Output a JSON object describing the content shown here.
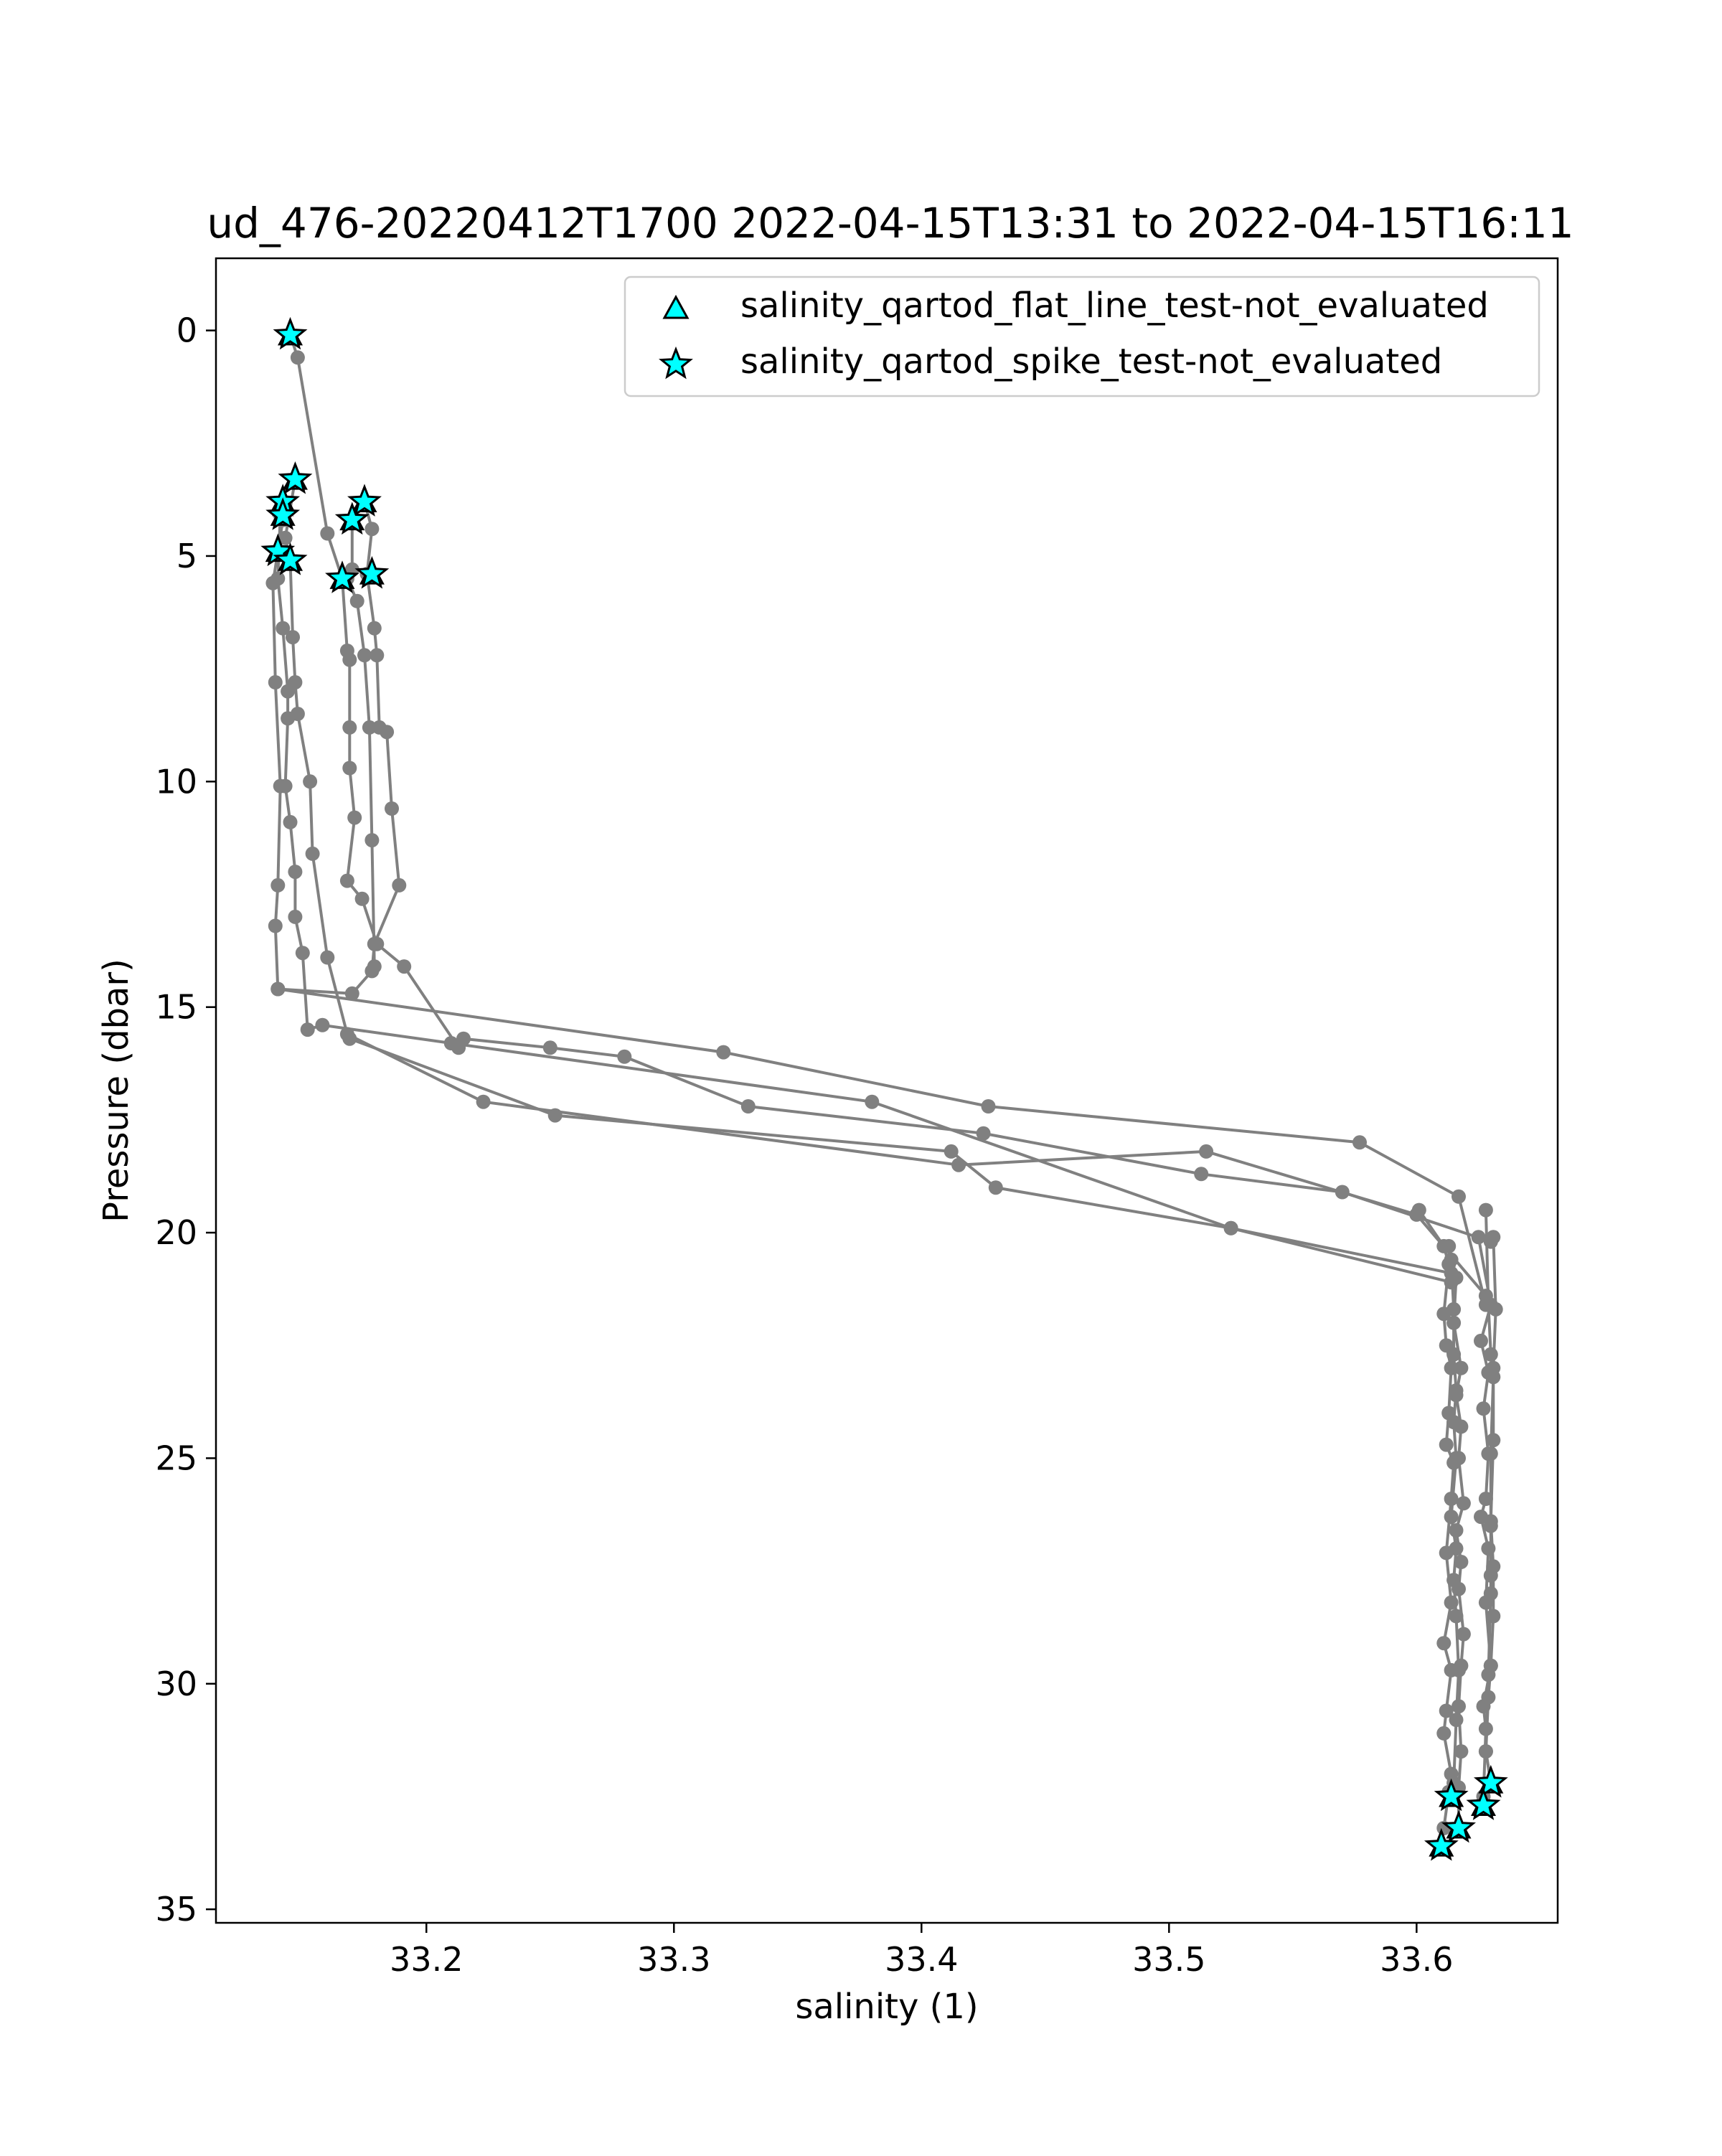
{
  "chart_data": {
    "type": "line",
    "title": "ud_476-20220412T1700 2022-04-15T13:31 to 2022-04-15T16:11",
    "xlabel": "salinity (1)",
    "ylabel": "Pressure (dbar)",
    "xlim": [
      33.115,
      33.657
    ],
    "ylim": [
      35.3,
      -1.6
    ],
    "y_inverted": true,
    "xticks": [
      {
        "value": 33.2,
        "label": "33.2"
      },
      {
        "value": 33.3,
        "label": "33.3"
      },
      {
        "value": 33.4,
        "label": "33.4"
      },
      {
        "value": 33.5,
        "label": "33.5"
      },
      {
        "value": 33.6,
        "label": "33.6"
      }
    ],
    "yticks": [
      {
        "value": 0,
        "label": "0"
      },
      {
        "value": 5,
        "label": "5"
      },
      {
        "value": 10,
        "label": "10"
      },
      {
        "value": 15,
        "label": "15"
      },
      {
        "value": 20,
        "label": "20"
      },
      {
        "value": 25,
        "label": "25"
      },
      {
        "value": 30,
        "label": "30"
      },
      {
        "value": 35,
        "label": "35"
      }
    ],
    "grid": false,
    "legend_position": "top-right",
    "colors": {
      "line": "#808080",
      "marker_fill": "#00ffff",
      "marker_edge": "#000000"
    },
    "legend": [
      {
        "label": "salinity_qartod_flat_line_test-not_evaluated",
        "marker": "triangle"
      },
      {
        "label": "salinity_qartod_spike_test-not_evaluated",
        "marker": "star"
      }
    ],
    "profiles": [
      {
        "points": [
          [
            33.145,
            0.1
          ],
          [
            33.148,
            0.6
          ],
          [
            33.16,
            4.5
          ],
          [
            33.166,
            5.5
          ],
          [
            33.168,
            7.1
          ],
          [
            33.169,
            7.3
          ],
          [
            33.169,
            8.8
          ],
          [
            33.169,
            9.7
          ],
          [
            33.171,
            10.8
          ],
          [
            33.168,
            12.2
          ],
          [
            33.174,
            12.6
          ],
          [
            33.18,
            13.6
          ],
          [
            33.191,
            14.1
          ],
          [
            33.213,
            15.9
          ],
          [
            33.215,
            15.7
          ],
          [
            33.25,
            15.9
          ],
          [
            33.28,
            16.1
          ],
          [
            33.33,
            17.2
          ],
          [
            33.425,
            17.8
          ],
          [
            33.513,
            18.7
          ],
          [
            33.57,
            19.1
          ],
          [
            33.63,
            20.2
          ]
        ]
      },
      {
        "points": [
          [
            33.142,
            3.8
          ],
          [
            33.141,
            4.1
          ],
          [
            33.14,
            5.5
          ],
          [
            33.142,
            6.6
          ],
          [
            33.144,
            8.0
          ],
          [
            33.144,
            8.6
          ],
          [
            33.143,
            10.1
          ],
          [
            33.145,
            10.9
          ],
          [
            33.147,
            12.0
          ],
          [
            33.147,
            13.0
          ],
          [
            33.15,
            13.8
          ],
          [
            33.152,
            15.5
          ],
          [
            33.158,
            15.4
          ],
          [
            33.21,
            15.8
          ],
          [
            33.38,
            17.1
          ],
          [
            33.525,
            19.9
          ],
          [
            33.614,
            20.9
          ]
        ]
      },
      {
        "points": [
          [
            33.147,
            3.3
          ],
          [
            33.143,
            4.6
          ],
          [
            33.145,
            5.1
          ],
          [
            33.146,
            6.8
          ],
          [
            33.147,
            7.8
          ],
          [
            33.148,
            8.5
          ],
          [
            33.153,
            10.0
          ],
          [
            33.154,
            11.6
          ],
          [
            33.16,
            13.9
          ],
          [
            33.168,
            15.6
          ],
          [
            33.223,
            17.1
          ],
          [
            33.415,
            18.5
          ],
          [
            33.515,
            18.2
          ],
          [
            33.6,
            19.6
          ],
          [
            33.628,
            21.4
          ]
        ]
      },
      {
        "points": [
          [
            33.142,
            4.2
          ],
          [
            33.138,
            5.6
          ],
          [
            33.139,
            7.8
          ],
          [
            33.141,
            10.1
          ],
          [
            33.14,
            12.3
          ],
          [
            33.139,
            13.2
          ],
          [
            33.14,
            14.6
          ],
          [
            33.32,
            16.0
          ],
          [
            33.427,
            17.2
          ],
          [
            33.577,
            18.0
          ],
          [
            33.617,
            19.2
          ],
          [
            33.628,
            21.6
          ]
        ]
      },
      {
        "points": [
          [
            33.175,
            3.8
          ],
          [
            33.178,
            4.4
          ],
          [
            33.176,
            5.4
          ],
          [
            33.179,
            6.6
          ],
          [
            33.18,
            7.2
          ],
          [
            33.181,
            8.8
          ],
          [
            33.184,
            8.9
          ],
          [
            33.186,
            10.6
          ],
          [
            33.189,
            12.3
          ],
          [
            33.179,
            13.6
          ],
          [
            33.178,
            14.2
          ],
          [
            33.17,
            14.7
          ],
          [
            33.14,
            14.6
          ]
        ]
      },
      {
        "points": [
          [
            33.17,
            4.2
          ],
          [
            33.17,
            5.3
          ],
          [
            33.168,
            5.5
          ],
          [
            33.172,
            6.0
          ],
          [
            33.175,
            7.2
          ],
          [
            33.177,
            8.8
          ],
          [
            33.178,
            11.3
          ],
          [
            33.179,
            14.1
          ]
        ]
      },
      {
        "points": [
          [
            33.169,
            15.7
          ],
          [
            33.252,
            17.4
          ],
          [
            33.412,
            18.2
          ],
          [
            33.43,
            19.0
          ],
          [
            33.525,
            19.9
          ],
          [
            33.614,
            21.1
          ]
        ]
      },
      {
        "points": [
          [
            33.601,
            19.5
          ],
          [
            33.611,
            20.3
          ],
          [
            33.613,
            20.7
          ],
          [
            33.611,
            21.8
          ],
          [
            33.612,
            22.5
          ],
          [
            33.614,
            23.0
          ],
          [
            33.613,
            24.0
          ],
          [
            33.612,
            24.7
          ],
          [
            33.615,
            25.1
          ],
          [
            33.614,
            25.9
          ],
          [
            33.612,
            27.1
          ],
          [
            33.614,
            28.2
          ],
          [
            33.611,
            29.1
          ],
          [
            33.614,
            29.7
          ],
          [
            33.612,
            30.6
          ],
          [
            33.611,
            31.1
          ],
          [
            33.614,
            32.0
          ],
          [
            33.613,
            32.4
          ],
          [
            33.611,
            33.2
          ],
          [
            33.61,
            33.6
          ]
        ]
      },
      {
        "points": [
          [
            33.613,
            20.3
          ],
          [
            33.616,
            21.0
          ],
          [
            33.615,
            22.0
          ],
          [
            33.618,
            23.0
          ],
          [
            33.616,
            23.6
          ],
          [
            33.618,
            24.3
          ],
          [
            33.617,
            25.0
          ],
          [
            33.619,
            26.0
          ],
          [
            33.616,
            26.6
          ],
          [
            33.618,
            27.3
          ],
          [
            33.617,
            27.9
          ],
          [
            33.619,
            28.9
          ],
          [
            33.618,
            29.6
          ],
          [
            33.617,
            30.5
          ],
          [
            33.618,
            31.5
          ],
          [
            33.617,
            32.3
          ],
          [
            33.617,
            33.2
          ]
        ]
      },
      {
        "points": [
          [
            33.614,
            20.6
          ],
          [
            33.615,
            21.7
          ],
          [
            33.615,
            22.7
          ],
          [
            33.616,
            23.5
          ],
          [
            33.615,
            24.2
          ],
          [
            33.616,
            25.0
          ],
          [
            33.614,
            26.3
          ],
          [
            33.616,
            27.0
          ],
          [
            33.615,
            27.7
          ],
          [
            33.616,
            28.5
          ],
          [
            33.617,
            29.7
          ],
          [
            33.616,
            30.8
          ],
          [
            33.615,
            32.2
          ],
          [
            33.614,
            32.5
          ]
        ]
      },
      {
        "points": [
          [
            33.625,
            20.1
          ],
          [
            33.63,
            21.6
          ],
          [
            33.626,
            22.4
          ],
          [
            33.629,
            23.1
          ],
          [
            33.627,
            23.9
          ],
          [
            33.629,
            24.9
          ],
          [
            33.628,
            25.9
          ],
          [
            33.626,
            26.3
          ],
          [
            33.629,
            27.0
          ],
          [
            33.628,
            28.2
          ],
          [
            33.63,
            29.6
          ],
          [
            33.627,
            30.5
          ],
          [
            33.628,
            31.0
          ],
          [
            33.627,
            32.5
          ],
          [
            33.627,
            32.7
          ]
        ]
      },
      {
        "points": [
          [
            33.628,
            19.5
          ],
          [
            33.629,
            21.6
          ],
          [
            33.63,
            22.7
          ],
          [
            33.631,
            23.2
          ],
          [
            33.63,
            24.9
          ],
          [
            33.63,
            26.5
          ],
          [
            33.63,
            27.6
          ],
          [
            33.63,
            28.0
          ],
          [
            33.629,
            29.8
          ],
          [
            33.628,
            31.5
          ],
          [
            33.63,
            32.2
          ]
        ]
      },
      {
        "points": [
          [
            33.631,
            20.1
          ],
          [
            33.632,
            21.7
          ],
          [
            33.631,
            23.0
          ],
          [
            33.631,
            24.6
          ],
          [
            33.63,
            26.4
          ],
          [
            33.631,
            27.4
          ],
          [
            33.631,
            28.5
          ],
          [
            33.63,
            29.6
          ],
          [
            33.629,
            30.3
          ],
          [
            33.628,
            31.5
          ],
          [
            33.63,
            32.2
          ]
        ]
      }
    ],
    "flagged_points": [
      [
        33.145,
        0.1
      ],
      [
        33.147,
        3.3
      ],
      [
        33.142,
        3.8
      ],
      [
        33.142,
        4.1
      ],
      [
        33.175,
        3.8
      ],
      [
        33.17,
        4.2
      ],
      [
        33.14,
        4.9
      ],
      [
        33.145,
        5.1
      ],
      [
        33.166,
        5.5
      ],
      [
        33.178,
        5.4
      ],
      [
        33.63,
        32.2
      ],
      [
        33.614,
        32.5
      ],
      [
        33.627,
        32.7
      ],
      [
        33.617,
        33.2
      ],
      [
        33.61,
        33.6
      ]
    ]
  }
}
